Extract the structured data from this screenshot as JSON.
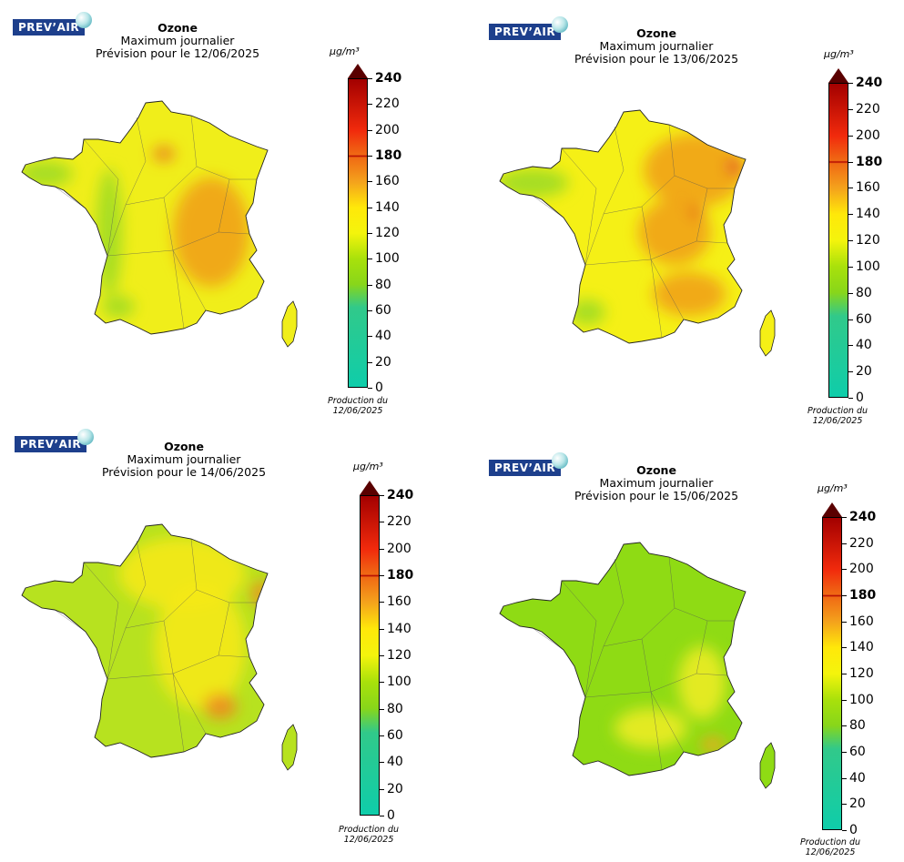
{
  "panels": [
    {
      "logo": "PREV’AIR",
      "title": "Ozone",
      "subtitle": "Maximum journalier",
      "forecast": "Prévision pour le 12/06/2025",
      "unit": "µg/m³",
      "production_label": "Production du",
      "production_date": "12/06/2025",
      "field": {
        "base": "#f0ee1a",
        "west": "#9fdc22",
        "hotspots": [
          "#f1a21a",
          "#e97720"
        ]
      }
    },
    {
      "logo": "PREV’AIR",
      "title": "Ozone",
      "subtitle": "Maximum journalier",
      "forecast": "Prévision pour le 13/06/2025",
      "unit": "µg/m³",
      "production_label": "Production du",
      "production_date": "12/06/2025",
      "field": {
        "base": "#f5f016",
        "west": "#9ddc22",
        "hotspots": [
          "#f1a21a",
          "#e2232a"
        ]
      }
    },
    {
      "logo": "PREV’AIR",
      "title": "Ozone",
      "subtitle": "Maximum journalier",
      "forecast": "Prévision pour le 14/06/2025",
      "unit": "µg/m³",
      "production_label": "Production du",
      "production_date": "12/06/2025",
      "field": {
        "base": "#b7e21f",
        "west": "#8fd724",
        "hotspots": [
          "#f5e91a",
          "#ef8a1e"
        ]
      }
    },
    {
      "logo": "PREV’AIR",
      "title": "Ozone",
      "subtitle": "Maximum journalier",
      "forecast": "Prévision pour le 15/06/2025",
      "unit": "µg/m³",
      "production_label": "Production du",
      "production_date": "12/06/2025",
      "field": {
        "base": "#8fdb14",
        "west": "#8fdb14",
        "hotspots": [
          "#ecec26",
          "#f2a51c"
        ]
      }
    }
  ],
  "colorbar": {
    "ticks": [
      "0",
      "20",
      "40",
      "60",
      "80",
      "100",
      "120",
      "140",
      "160",
      "180",
      "200",
      "220",
      "240"
    ],
    "bold_ticks": [
      "180",
      "240"
    ],
    "colors": {
      "c0": "#0fcdaa",
      "c60": "#31c98a",
      "c80": "#88d61a",
      "c100": "#a9e10b",
      "c120": "#f4f40c",
      "c140": "#ffe80a",
      "c160": "#f4a21c",
      "c180": "#f06a14",
      "c200": "#f12a0c",
      "c240": "#a30000",
      "tip": "#5a0000"
    }
  }
}
